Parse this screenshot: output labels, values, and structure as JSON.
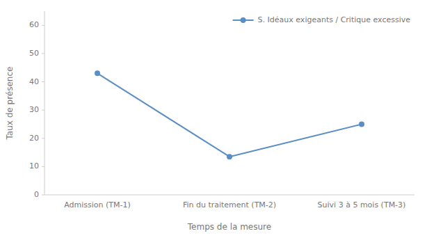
{
  "chart_data": {
    "type": "line",
    "categories": [
      "Admission (TM-1)",
      "Fin du traitement (TM-2)",
      "Suivi 3 à 5 mois (TM-3)"
    ],
    "series": [
      {
        "name": "S. Idéaux exigeants / Critique excessive",
        "color": "#5b8ec4",
        "values": [
          43,
          13.5,
          25
        ],
        "marker": "circle"
      }
    ],
    "x_label": "Temps de la mesure",
    "y_label": "Taux de présence",
    "ylim": [
      0,
      65
    ],
    "yticks": [
      0,
      10,
      20,
      30,
      40,
      50,
      60
    ],
    "legend": "upper right",
    "grid": false
  }
}
